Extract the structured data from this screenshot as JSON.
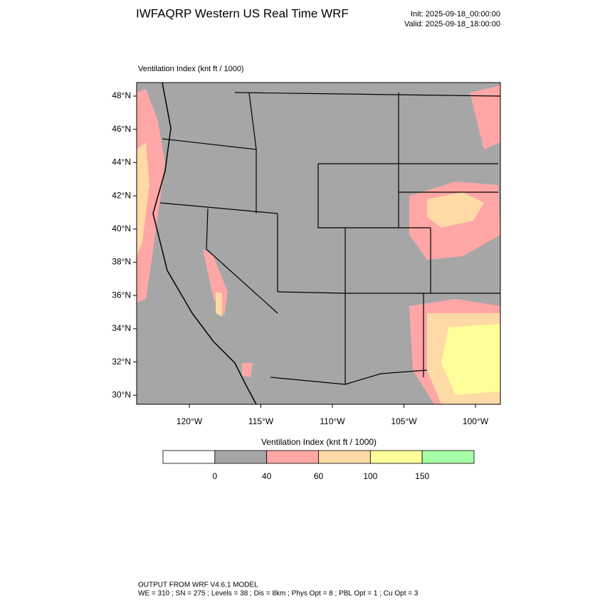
{
  "header": {
    "title": "IWFAQRP Western US Real Time WRF",
    "init": "Init: 2025-09-18_00:00:00",
    "valid": "Valid: 2025-09-18_18:00:00"
  },
  "map": {
    "title": "Ventilation Index   (knt ft / 1000)",
    "lat_labels": [
      "48°N",
      "46°N",
      "44°N",
      "42°N",
      "40°N",
      "38°N",
      "36°N",
      "34°N",
      "32°N",
      "30°N"
    ],
    "lon_labels": [
      "120°W",
      "115°W",
      "110°W",
      "105°W",
      "100°W"
    ]
  },
  "colorbar": {
    "title": "Ventilation Index   (knt ft / 1000)",
    "colors": [
      "#ffffff",
      "#a6a6a6",
      "#ffa6a6",
      "#ffd9a6",
      "#ffff99",
      "#a6ffa6"
    ],
    "labels": [
      "0",
      "40",
      "60",
      "100",
      "150"
    ]
  },
  "footer": {
    "line1": "OUTPUT FROM WRF V4.6.1 MODEL",
    "line2": "WE = 310 ; SN = 275 ; Levels = 38 ; Dis = 8km ; Phys Opt = 8 ; PBL Opt = 1 ; Cu Opt = 3"
  }
}
